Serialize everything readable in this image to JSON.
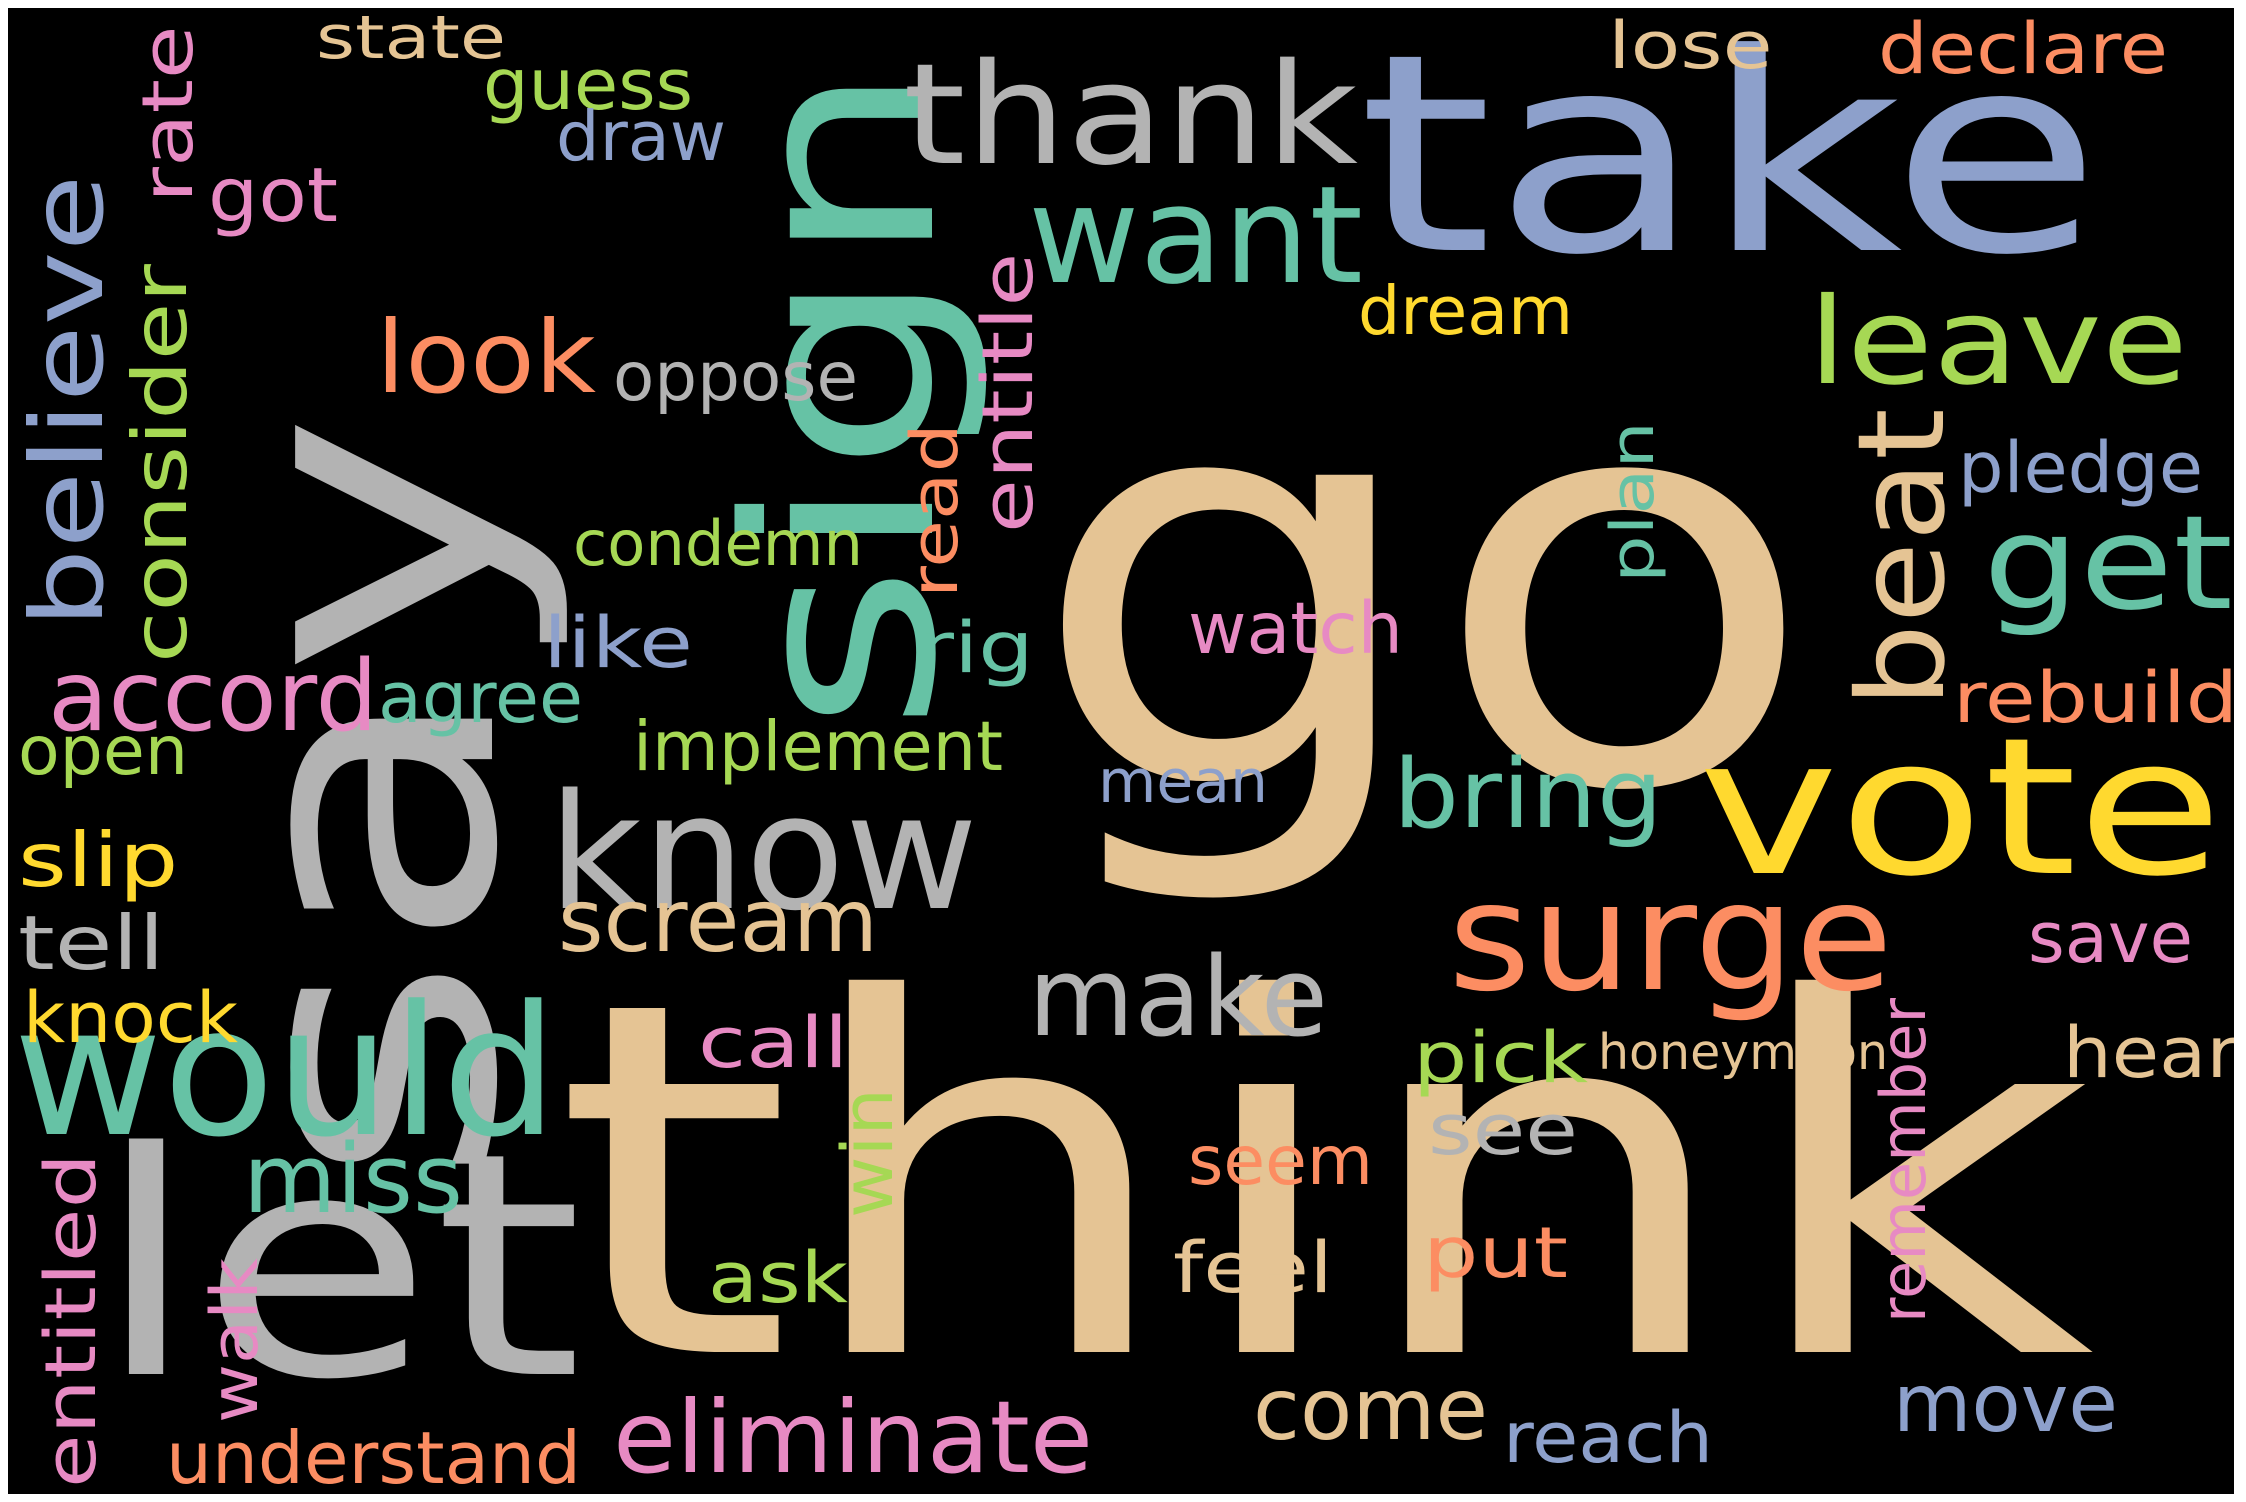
{
  "wordcloud": {
    "background": "#000000",
    "words": [
      {
        "text": "go",
        "color": "#e5c494"
      },
      {
        "text": "think",
        "color": "#e5c494"
      },
      {
        "text": "say",
        "color": "#b3b3b3"
      },
      {
        "text": "take",
        "color": "#8da0cb"
      },
      {
        "text": "sign",
        "color": "#66c2a5"
      },
      {
        "text": "let",
        "color": "#b3b3b3"
      },
      {
        "text": "vote",
        "color": "#ffd92f"
      },
      {
        "text": "would",
        "color": "#66c2a5"
      },
      {
        "text": "know",
        "color": "#b3b3b3"
      },
      {
        "text": "thank",
        "color": "#b3b3b3"
      },
      {
        "text": "surge",
        "color": "#fc8d62"
      },
      {
        "text": "want",
        "color": "#66c2a5"
      },
      {
        "text": "beat",
        "color": "#e5c494"
      },
      {
        "text": "make",
        "color": "#b3b3b3"
      },
      {
        "text": "get",
        "color": "#66c2a5"
      },
      {
        "text": "leave",
        "color": "#a6d854"
      },
      {
        "text": "believe",
        "color": "#8da0cb"
      },
      {
        "text": "accord",
        "color": "#e78ac3"
      },
      {
        "text": "scream",
        "color": "#e5c494"
      },
      {
        "text": "bring",
        "color": "#66c2a5"
      },
      {
        "text": "eliminate",
        "color": "#e78ac3"
      },
      {
        "text": "look",
        "color": "#fc8d62"
      },
      {
        "text": "miss",
        "color": "#66c2a5"
      },
      {
        "text": "move",
        "color": "#8da0cb"
      },
      {
        "text": "come",
        "color": "#e5c494"
      },
      {
        "text": "consider",
        "color": "#a6d854"
      },
      {
        "text": "oppose",
        "color": "#b3b3b3"
      },
      {
        "text": "condemn",
        "color": "#a6d854"
      },
      {
        "text": "implement",
        "color": "#a6d854"
      },
      {
        "text": "understand",
        "color": "#fc8d62"
      },
      {
        "text": "entitle",
        "color": "#e78ac3"
      },
      {
        "text": "watch",
        "color": "#e78ac3"
      },
      {
        "text": "state",
        "color": "#e5c494"
      },
      {
        "text": "guess",
        "color": "#a6d854"
      },
      {
        "text": "draw",
        "color": "#8da0cb"
      },
      {
        "text": "got",
        "color": "#e78ac3"
      },
      {
        "text": "rate",
        "color": "#e78ac3"
      },
      {
        "text": "dream",
        "color": "#ffd92f"
      },
      {
        "text": "lose",
        "color": "#e5c494"
      },
      {
        "text": "declare",
        "color": "#fc8d62"
      },
      {
        "text": "pledge",
        "color": "#8da0cb"
      },
      {
        "text": "plan",
        "color": "#66c2a5"
      },
      {
        "text": "read",
        "color": "#fc8d62"
      },
      {
        "text": "like",
        "color": "#8da0cb"
      },
      {
        "text": "rig",
        "color": "#66c2a5"
      },
      {
        "text": "agree",
        "color": "#66c2a5"
      },
      {
        "text": "rebuild",
        "color": "#fc8d62"
      },
      {
        "text": "open",
        "color": "#a6d854"
      },
      {
        "text": "mean",
        "color": "#8da0cb"
      },
      {
        "text": "slip",
        "color": "#ffd92f"
      },
      {
        "text": "tell",
        "color": "#b3b3b3"
      },
      {
        "text": "save",
        "color": "#e78ac3"
      },
      {
        "text": "knock",
        "color": "#ffd92f"
      },
      {
        "text": "call",
        "color": "#e78ac3"
      },
      {
        "text": "pick",
        "color": "#a6d854"
      },
      {
        "text": "honeymoon",
        "color": "#e5c494"
      },
      {
        "text": "hear",
        "color": "#e5c494"
      },
      {
        "text": "win",
        "color": "#a6d854"
      },
      {
        "text": "see",
        "color": "#b3b3b3"
      },
      {
        "text": "seem",
        "color": "#fc8d62"
      },
      {
        "text": "remember",
        "color": "#e78ac3"
      },
      {
        "text": "feel",
        "color": "#e5c494"
      },
      {
        "text": "put",
        "color": "#fc8d62"
      },
      {
        "text": "ask",
        "color": "#a6d854"
      },
      {
        "text": "entitled",
        "color": "#e78ac3"
      },
      {
        "text": "walk",
        "color": "#e78ac3"
      },
      {
        "text": "reach",
        "color": "#8da0cb"
      }
    ]
  }
}
